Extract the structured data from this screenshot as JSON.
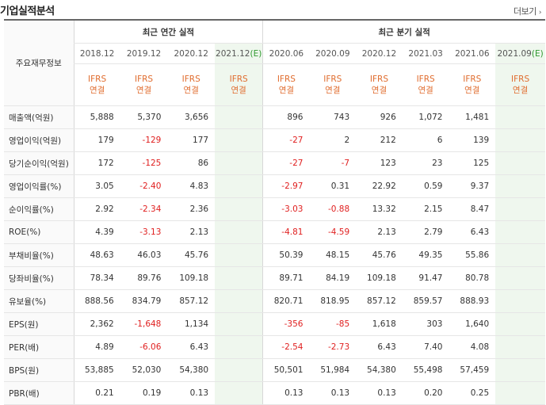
{
  "page": {
    "title": "기업실적분석",
    "more_label": "더보기"
  },
  "table": {
    "row_header_label": "주요재무정보",
    "annual_group_label": "최근 연간 실적",
    "quarter_group_label": "최근 분기 실적",
    "annual_periods": [
      "2018.12",
      "2019.12",
      "2020.12",
      "2021.12(E)"
    ],
    "quarter_periods": [
      "2020.06",
      "2020.09",
      "2020.12",
      "2021.03",
      "2021.06",
      "2021.09(E)"
    ],
    "basis_line1": "IFRS",
    "basis_line2": "연결",
    "rows": [
      {
        "label": "매출액(억원)",
        "values": [
          "5,888",
          "5,370",
          "3,656",
          "",
          "896",
          "743",
          "926",
          "1,072",
          "1,481",
          ""
        ]
      },
      {
        "label": "영업이익(억원)",
        "values": [
          "179",
          "-129",
          "177",
          "",
          "-27",
          "2",
          "212",
          "6",
          "139",
          ""
        ]
      },
      {
        "label": "당기순이익(억원)",
        "values": [
          "172",
          "-125",
          "86",
          "",
          "-27",
          "-7",
          "123",
          "23",
          "125",
          ""
        ]
      },
      {
        "label": "영업이익률(%)",
        "values": [
          "3.05",
          "-2.40",
          "4.83",
          "",
          "-2.97",
          "0.31",
          "22.92",
          "0.59",
          "9.37",
          ""
        ]
      },
      {
        "label": "순이익률(%)",
        "values": [
          "2.92",
          "-2.34",
          "2.36",
          "",
          "-3.03",
          "-0.88",
          "13.32",
          "2.15",
          "8.47",
          ""
        ]
      },
      {
        "label": "ROE(%)",
        "values": [
          "4.39",
          "-3.13",
          "2.13",
          "",
          "-4.81",
          "-4.59",
          "2.13",
          "2.79",
          "6.43",
          ""
        ]
      },
      {
        "label": "부채비율(%)",
        "values": [
          "48.63",
          "46.03",
          "45.76",
          "",
          "50.39",
          "48.15",
          "45.76",
          "49.35",
          "55.86",
          ""
        ]
      },
      {
        "label": "당좌비율(%)",
        "values": [
          "78.34",
          "89.76",
          "109.18",
          "",
          "89.71",
          "84.19",
          "109.18",
          "91.47",
          "80.78",
          ""
        ]
      },
      {
        "label": "유보율(%)",
        "values": [
          "888.56",
          "834.79",
          "857.12",
          "",
          "820.71",
          "818.95",
          "857.12",
          "859.57",
          "888.93",
          ""
        ]
      },
      {
        "label": "EPS(원)",
        "values": [
          "2,362",
          "-1,648",
          "1,134",
          "",
          "-356",
          "-85",
          "1,618",
          "303",
          "1,640",
          ""
        ]
      },
      {
        "label": "PER(배)",
        "values": [
          "4.89",
          "-6.06",
          "6.43",
          "",
          "-2.54",
          "-2.73",
          "6.43",
          "7.40",
          "4.08",
          ""
        ]
      },
      {
        "label": "BPS(원)",
        "values": [
          "53,885",
          "52,030",
          "54,380",
          "",
          "50,501",
          "51,984",
          "54,380",
          "55,498",
          "57,459",
          ""
        ]
      },
      {
        "label": "PBR(배)",
        "values": [
          "0.21",
          "0.19",
          "0.13",
          "",
          "0.13",
          "0.13",
          "0.13",
          "0.20",
          "0.25",
          ""
        ]
      }
    ]
  },
  "colors": {
    "negative": "#e02020",
    "ifrs": "#e06c2e",
    "estimate_bg": "#eff7ee",
    "estimate_mark": "#2f9a2f"
  }
}
